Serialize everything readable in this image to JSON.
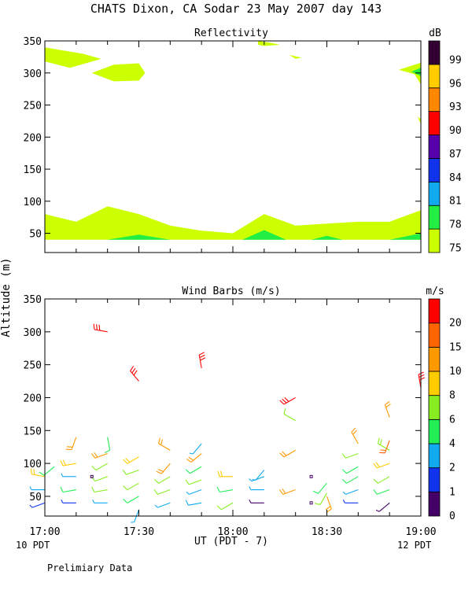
{
  "page": {
    "title": "CHATS Dixon, CA  Sodar  23 May 2007  day 143",
    "ylabel": "Altitude (m)",
    "xlabel": "UT  (PDT - 7)",
    "left_note": "10 PDT",
    "right_note": "12 PDT",
    "footer": "Prelimiary Data"
  },
  "chart_data": [
    {
      "type": "heatmap",
      "title": "Reflectivity",
      "ylim": [
        20,
        350
      ],
      "yticks": [
        50,
        100,
        150,
        200,
        250,
        300,
        350
      ],
      "x_minutes_range": [
        0,
        120
      ],
      "xticks": [
        0,
        30,
        60,
        90,
        120
      ],
      "colorbar": {
        "unit": "dB",
        "levels": [
          "75",
          "78",
          "81",
          "84",
          "87",
          "90",
          "93",
          "96",
          "99"
        ],
        "colors": [
          "#ccff00",
          "#22ee44",
          "#11aaee",
          "#1133ee",
          "#5500aa",
          "#ff0000",
          "#ff8800",
          "#ffcc00",
          "#330033"
        ]
      },
      "regions": [
        {
          "level": "75",
          "points": [
            [
              0,
              340
            ],
            [
              12,
              330
            ],
            [
              18,
              322
            ],
            [
              8,
              308
            ],
            [
              0,
              318
            ]
          ]
        },
        {
          "level": "75",
          "points": [
            [
              15,
              300
            ],
            [
              22,
              287
            ],
            [
              30,
              288
            ],
            [
              32,
              300
            ],
            [
              30,
              315
            ],
            [
              22,
              313
            ]
          ]
        },
        {
          "level": "75",
          "points": [
            [
              68,
              350
            ],
            [
              72,
              347
            ],
            [
              75,
              344
            ],
            [
              70,
              342
            ],
            [
              68,
              344
            ]
          ]
        },
        {
          "level": "75",
          "points": [
            [
              78,
              328
            ],
            [
              80,
              322
            ],
            [
              82,
              324
            ]
          ]
        },
        {
          "level": "75",
          "points": [
            [
              120,
              316
            ],
            [
              113,
              305
            ],
            [
              118,
              298
            ],
            [
              120,
              282
            ]
          ]
        },
        {
          "level": "78",
          "points": [
            [
              120,
              308
            ],
            [
              117,
              302
            ],
            [
              120,
              295
            ]
          ]
        },
        {
          "level": "75",
          "points": [
            [
              119,
              232
            ],
            [
              120,
              228
            ],
            [
              120,
              220
            ]
          ]
        },
        {
          "level": "75",
          "points": [
            [
              0,
              40
            ],
            [
              0,
              80
            ],
            [
              10,
              68
            ],
            [
              20,
              92
            ],
            [
              30,
              80
            ],
            [
              40,
              62
            ],
            [
              50,
              54
            ],
            [
              60,
              50
            ],
            [
              70,
              80
            ],
            [
              80,
              62
            ],
            [
              90,
              65
            ],
            [
              100,
              68
            ],
            [
              110,
              68
            ],
            [
              120,
              86
            ],
            [
              120,
              40
            ]
          ]
        },
        {
          "level": "78",
          "points": [
            [
              20,
              40
            ],
            [
              30,
              48
            ],
            [
              40,
              40
            ]
          ]
        },
        {
          "level": "78",
          "points": [
            [
              63,
              40
            ],
            [
              70,
              55
            ],
            [
              77,
              40
            ]
          ]
        },
        {
          "level": "78",
          "points": [
            [
              85,
              40
            ],
            [
              90,
              46
            ],
            [
              95,
              40
            ]
          ]
        },
        {
          "level": "78",
          "points": [
            [
              110,
              40
            ],
            [
              120,
              50
            ],
            [
              120,
              40
            ]
          ]
        }
      ]
    },
    {
      "type": "scatter",
      "title": "Wind Barbs (m/s)",
      "ylim": [
        20,
        350
      ],
      "yticks": [
        50,
        100,
        150,
        200,
        250,
        300,
        350
      ],
      "x_minutes_range": [
        0,
        120
      ],
      "xticks": [
        0,
        30,
        60,
        90,
        120
      ],
      "xtick_labels": [
        "17:00",
        "17:30",
        "18:00",
        "18:30",
        "19:00"
      ],
      "colorbar": {
        "unit": "m/s",
        "levels": [
          "0",
          "1",
          "2",
          "4",
          "6",
          "8",
          "10",
          "15",
          "20"
        ],
        "colors": [
          "#440066",
          "#1133ee",
          "#11aaee",
          "#22ee55",
          "#88ee22",
          "#ffcc00",
          "#ff9900",
          "#ff6600",
          "#ff0000"
        ]
      },
      "barbs": [
        {
          "t": 0,
          "z": 40,
          "dir": 250,
          "spd": 1,
          "c": "#1133ee"
        },
        {
          "t": 0,
          "z": 60,
          "dir": 270,
          "spd": 2,
          "c": "#11aaee"
        },
        {
          "t": 0,
          "z": 80,
          "dir": 280,
          "spd": 8,
          "c": "#ffcc00"
        },
        {
          "t": 3,
          "z": 95,
          "dir": 230,
          "spd": 4,
          "c": "#22ee55"
        },
        {
          "t": 10,
          "z": 40,
          "dir": 270,
          "spd": 2,
          "c": "#1133ee"
        },
        {
          "t": 10,
          "z": 60,
          "dir": 260,
          "spd": 4,
          "c": "#22ee55"
        },
        {
          "t": 10,
          "z": 80,
          "dir": 270,
          "spd": 2,
          "c": "#11aaee"
        },
        {
          "t": 10,
          "z": 100,
          "dir": 260,
          "spd": 8,
          "c": "#ffcc00"
        },
        {
          "t": 10,
          "z": 140,
          "dir": 200,
          "spd": 10,
          "c": "#ff9900"
        },
        {
          "t": 20,
          "z": 40,
          "dir": 270,
          "spd": 2,
          "c": "#11aaee"
        },
        {
          "t": 20,
          "z": 60,
          "dir": 260,
          "spd": 6,
          "c": "#88ee22"
        },
        {
          "t": 20,
          "z": 80,
          "dir": 250,
          "spd": 6,
          "c": "#88ee22"
        },
        {
          "t": 20,
          "z": 100,
          "dir": 240,
          "spd": 6,
          "c": "#88ee22"
        },
        {
          "t": 20,
          "z": 115,
          "dir": 250,
          "spd": 10,
          "c": "#ff9900"
        },
        {
          "t": 20,
          "z": 140,
          "dir": 170,
          "spd": 4,
          "c": "#22ee55"
        },
        {
          "t": 20,
          "z": 300,
          "dir": 280,
          "spd": 20,
          "c": "#ff0000"
        },
        {
          "t": 30,
          "z": 30,
          "dir": 200,
          "spd": 2,
          "c": "#11aaee"
        },
        {
          "t": 30,
          "z": 50,
          "dir": 240,
          "spd": 4,
          "c": "#22ee55"
        },
        {
          "t": 30,
          "z": 70,
          "dir": 240,
          "spd": 6,
          "c": "#88ee22"
        },
        {
          "t": 30,
          "z": 90,
          "dir": 250,
          "spd": 6,
          "c": "#88ee22"
        },
        {
          "t": 30,
          "z": 110,
          "dir": 240,
          "spd": 8,
          "c": "#ffcc00"
        },
        {
          "t": 30,
          "z": 225,
          "dir": 320,
          "spd": 20,
          "c": "#ff0000"
        },
        {
          "t": 40,
          "z": 40,
          "dir": 250,
          "spd": 2,
          "c": "#11aaee"
        },
        {
          "t": 40,
          "z": 60,
          "dir": 250,
          "spd": 6,
          "c": "#88ee22"
        },
        {
          "t": 40,
          "z": 80,
          "dir": 240,
          "spd": 6,
          "c": "#88ee22"
        },
        {
          "t": 40,
          "z": 100,
          "dir": 220,
          "spd": 10,
          "c": "#ff9900"
        },
        {
          "t": 40,
          "z": 120,
          "dir": 300,
          "spd": 10,
          "c": "#ff9900"
        },
        {
          "t": 50,
          "z": 40,
          "dir": 260,
          "spd": 4,
          "c": "#11aaee"
        },
        {
          "t": 50,
          "z": 60,
          "dir": 250,
          "spd": 2,
          "c": "#11aaee"
        },
        {
          "t": 50,
          "z": 75,
          "dir": 250,
          "spd": 6,
          "c": "#88ee22"
        },
        {
          "t": 50,
          "z": 95,
          "dir": 240,
          "spd": 4,
          "c": "#22ee55"
        },
        {
          "t": 50,
          "z": 115,
          "dir": 230,
          "spd": 10,
          "c": "#ff9900"
        },
        {
          "t": 50,
          "z": 130,
          "dir": 220,
          "spd": 2,
          "c": "#11aaee"
        },
        {
          "t": 50,
          "z": 245,
          "dir": 350,
          "spd": 20,
          "c": "#ff0000"
        },
        {
          "t": 60,
          "z": 40,
          "dir": 240,
          "spd": 6,
          "c": "#88ee22"
        },
        {
          "t": 60,
          "z": 60,
          "dir": 260,
          "spd": 4,
          "c": "#22ee55"
        },
        {
          "t": 60,
          "z": 80,
          "dir": 270,
          "spd": 8,
          "c": "#ffcc00"
        },
        {
          "t": 70,
          "z": 40,
          "dir": 270,
          "spd": 1,
          "c": "#440066"
        },
        {
          "t": 70,
          "z": 60,
          "dir": 270,
          "spd": 2,
          "c": "#11aaee"
        },
        {
          "t": 70,
          "z": 80,
          "dir": 250,
          "spd": 2,
          "c": "#11aaee"
        },
        {
          "t": 70,
          "z": 90,
          "dir": 220,
          "spd": 2,
          "c": "#11aaee"
        },
        {
          "t": 80,
          "z": 60,
          "dir": 250,
          "spd": 8,
          "c": "#ff9900"
        },
        {
          "t": 80,
          "z": 120,
          "dir": 240,
          "spd": 8,
          "c": "#ff9900"
        },
        {
          "t": 80,
          "z": 165,
          "dir": 300,
          "spd": 6,
          "c": "#88ee22"
        },
        {
          "t": 80,
          "z": 200,
          "dir": 240,
          "spd": 20,
          "c": "#ff0000"
        },
        {
          "t": 90,
          "z": 55,
          "dir": 210,
          "spd": 6,
          "c": "#88ee22"
        },
        {
          "t": 90,
          "z": 50,
          "dir": 160,
          "spd": 8,
          "c": "#ff9900"
        },
        {
          "t": 90,
          "z": 70,
          "dir": 220,
          "spd": 4,
          "c": "#22ee55"
        },
        {
          "t": 100,
          "z": 40,
          "dir": 270,
          "spd": 1,
          "c": "#1133ee"
        },
        {
          "t": 100,
          "z": 60,
          "dir": 250,
          "spd": 2,
          "c": "#11aaee"
        },
        {
          "t": 100,
          "z": 80,
          "dir": 240,
          "spd": 4,
          "c": "#22ee55"
        },
        {
          "t": 100,
          "z": 95,
          "dir": 240,
          "spd": 4,
          "c": "#22ee55"
        },
        {
          "t": 100,
          "z": 115,
          "dir": 250,
          "spd": 6,
          "c": "#88ee22"
        },
        {
          "t": 100,
          "z": 130,
          "dir": 330,
          "spd": 10,
          "c": "#ff9900"
        },
        {
          "t": 110,
          "z": 40,
          "dir": 230,
          "spd": 1,
          "c": "#440066"
        },
        {
          "t": 110,
          "z": 60,
          "dir": 250,
          "spd": 4,
          "c": "#22ee55"
        },
        {
          "t": 110,
          "z": 80,
          "dir": 240,
          "spd": 6,
          "c": "#88ee22"
        },
        {
          "t": 110,
          "z": 100,
          "dir": 250,
          "spd": 8,
          "c": "#ffcc00"
        },
        {
          "t": 110,
          "z": 120,
          "dir": 300,
          "spd": 8,
          "c": "#88ee22"
        },
        {
          "t": 110,
          "z": 135,
          "dir": 200,
          "spd": 10,
          "c": "#ff6600"
        },
        {
          "t": 110,
          "z": 170,
          "dir": 340,
          "spd": 10,
          "c": "#ff9900"
        },
        {
          "t": 120,
          "z": 215,
          "dir": 350,
          "spd": 20,
          "c": "#ff0000"
        }
      ],
      "calm": [
        {
          "t": 15,
          "z": 80,
          "c": "#440066"
        },
        {
          "t": 85,
          "z": 40,
          "c": "#440066"
        },
        {
          "t": 85,
          "z": 80,
          "c": "#440066"
        }
      ]
    }
  ]
}
